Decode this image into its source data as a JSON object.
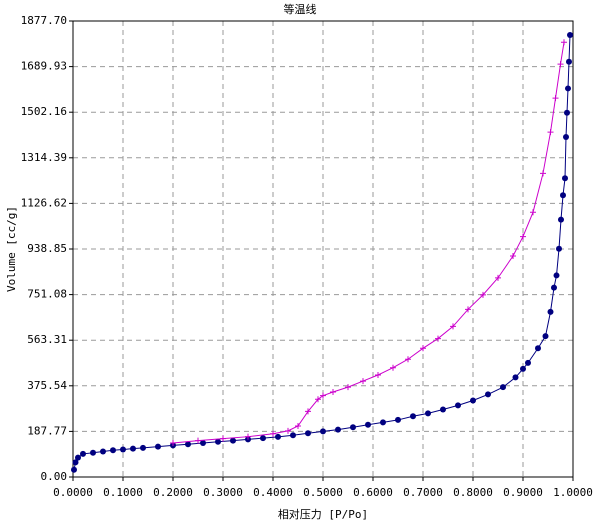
{
  "chart_data": {
    "type": "line",
    "title": "等温线",
    "x_label": "相对压力 [P/Po]",
    "y_label": "Volume [cc/g]",
    "xlim": [
      0,
      1
    ],
    "ylim": [
      0,
      1877.7
    ],
    "grid": true,
    "xticks": [
      {
        "value": 0,
        "label": "0.0000"
      },
      {
        "value": 0.1,
        "label": "0.1000"
      },
      {
        "value": 0.2,
        "label": "0.2000"
      },
      {
        "value": 0.3,
        "label": "0.3000"
      },
      {
        "value": 0.4,
        "label": "0.4000"
      },
      {
        "value": 0.5,
        "label": "0.5000"
      },
      {
        "value": 0.6,
        "label": "0.6000"
      },
      {
        "value": 0.7,
        "label": "0.7000"
      },
      {
        "value": 0.8,
        "label": "0.8000"
      },
      {
        "value": 0.9,
        "label": "0.9000"
      },
      {
        "value": 1,
        "label": "1.0000"
      }
    ],
    "yticks": [
      {
        "value": 0,
        "label": "0.00"
      },
      187.77,
      375.54,
      563.31,
      751.08,
      938.85,
      1126.62,
      1314.39,
      1502.16,
      1689.93,
      {
        "value": 1877.7,
        "label": "1877.70"
      }
    ],
    "series": [
      {
        "color": "#000080",
        "marker": "dot",
        "x": [
          0.002,
          0.005,
          0.01,
          0.02,
          0.04,
          0.06,
          0.08,
          0.1,
          0.12,
          0.14,
          0.17,
          0.2,
          0.23,
          0.26,
          0.29,
          0.32,
          0.35,
          0.38,
          0.41,
          0.44,
          0.47,
          0.5,
          0.53,
          0.56,
          0.59,
          0.62,
          0.65,
          0.68,
          0.71,
          0.74,
          0.77,
          0.8,
          0.83,
          0.86,
          0.885,
          0.9,
          0.91,
          0.93,
          0.945,
          0.955,
          0.962,
          0.967,
          0.972,
          0.976,
          0.98,
          0.984,
          0.986,
          0.988,
          0.99,
          0.992,
          0.994
        ],
        "values": [
          30,
          60,
          80,
          95,
          100,
          105,
          110,
          113,
          117,
          120,
          125,
          130,
          135,
          140,
          145,
          150,
          155,
          160,
          165,
          172,
          180,
          188,
          195,
          205,
          215,
          225,
          235,
          250,
          262,
          278,
          295,
          315,
          340,
          370,
          410,
          445,
          470,
          530,
          580,
          680,
          780,
          830,
          940,
          1060,
          1160,
          1230,
          1400,
          1500,
          1600,
          1710,
          1820
        ]
      },
      {
        "color": "#cc00cc",
        "marker": "plus",
        "x": [
          0.2,
          0.25,
          0.3,
          0.35,
          0.4,
          0.43,
          0.45,
          0.47,
          0.49,
          0.5,
          0.52,
          0.55,
          0.58,
          0.61,
          0.64,
          0.67,
          0.7,
          0.73,
          0.76,
          0.79,
          0.82,
          0.85,
          0.88,
          0.9,
          0.92,
          0.94,
          0.955,
          0.965,
          0.975,
          0.982
        ],
        "values": [
          140,
          150,
          158,
          166,
          178,
          190,
          210,
          270,
          320,
          335,
          350,
          370,
          395,
          420,
          450,
          485,
          530,
          570,
          620,
          690,
          750,
          820,
          910,
          990,
          1090,
          1250,
          1420,
          1560,
          1700,
          1790
        ]
      }
    ]
  }
}
